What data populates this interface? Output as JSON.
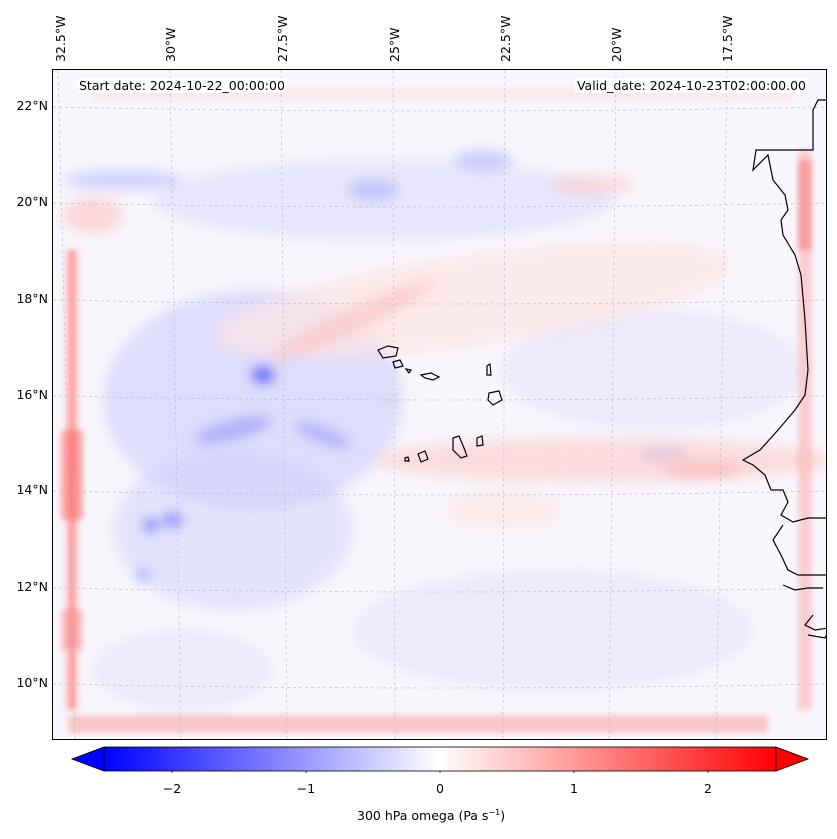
{
  "map": {
    "start_label": "Start date: 2024-10-22_00:00:00",
    "valid_label": "Valid_date: 2024-10-23T02:00:00.00",
    "field_name": "300 hPa omega",
    "colormap": "bwr",
    "colors": {
      "negative": "#0000ff",
      "neutral": "#ffffff",
      "positive": "#ff0000",
      "coastline": "#000000",
      "gridline": "#b0b0b0"
    },
    "lon_ticks": [
      "32.5°W",
      "30°W",
      "27.5°W",
      "25°W",
      "22.5°W",
      "20°W",
      "17.5°W"
    ],
    "lat_ticks": [
      "22°N",
      "20°N",
      "18°N",
      "16°N",
      "14°N",
      "12°N",
      "10°N"
    ]
  },
  "colorbar": {
    "ticks": [
      "−2",
      "−1",
      "0",
      "1",
      "2"
    ],
    "range": [
      -2.75,
      2.75
    ],
    "extend": "both",
    "label_text": "300 hPa omega (Pa s",
    "label_exp": "−1",
    "label_close": ")"
  }
}
